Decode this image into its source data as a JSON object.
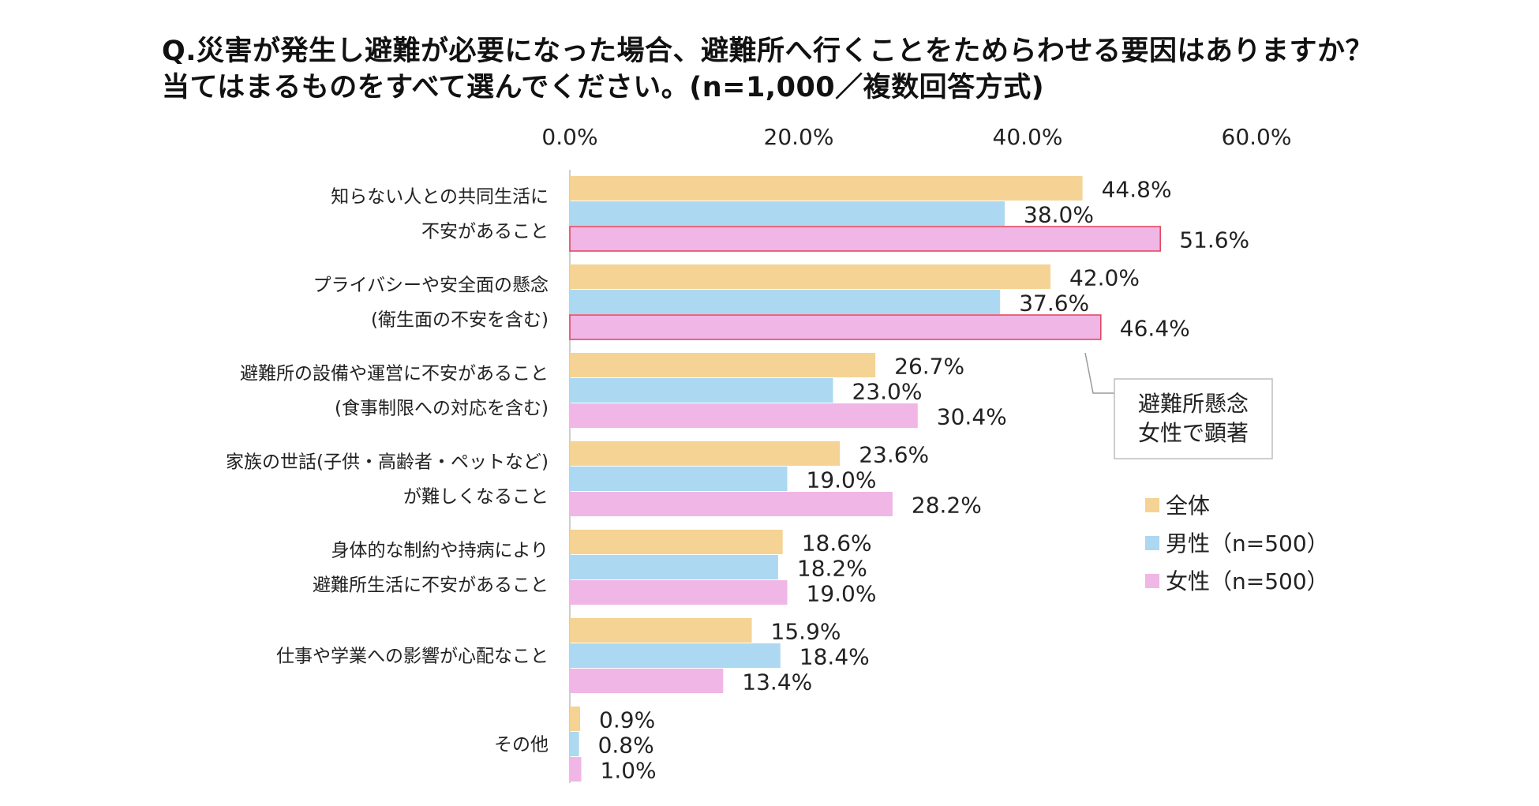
{
  "chart_data": {
    "type": "bar",
    "orientation": "horizontal",
    "title": "Q.災害が発生し避難が必要になった場合、避難所へ行くことをためらわせる要因はありますか？当てはまるものをすべて選んでください。(n=1,000／複数回答方式)",
    "xlim": [
      0,
      60
    ],
    "x_ticks": [
      "0.0%",
      "20.0%",
      "40.0%",
      "60.0%"
    ],
    "x_tick_values": [
      0,
      20,
      40,
      60
    ],
    "tick_position": "top",
    "categories": [
      [
        "知らない人との共同生活に",
        "不安があること"
      ],
      [
        "プライバシーや安全面の懸念",
        "(衛生面の不安を含む)"
      ],
      [
        "避難所の設備や運営に不安があること",
        "(食事制限への対応を含む)"
      ],
      [
        "家族の世話(子供・高齢者・ペットなど)",
        "が難しくなること"
      ],
      [
        "身体的な制約や持病により",
        "避難所生活に不安があること"
      ],
      [
        "仕事や学業への影響が心配なこと"
      ],
      [
        "その他"
      ]
    ],
    "series": [
      {
        "name": "全体",
        "color": "#f4d394",
        "values": [
          44.8,
          42.0,
          26.7,
          23.6,
          18.6,
          15.9,
          0.9
        ],
        "labels": [
          "44.8%",
          "42.0%",
          "26.7%",
          "23.6%",
          "18.6%",
          "15.9%",
          "0.9%"
        ]
      },
      {
        "name": "男性（n=500）",
        "color": "#acd8f2",
        "values": [
          38.0,
          37.6,
          23.0,
          19.0,
          18.2,
          18.4,
          0.8
        ],
        "labels": [
          "38.0%",
          "37.6%",
          "23.0%",
          "19.0%",
          "18.2%",
          "18.4%",
          "0.8%"
        ]
      },
      {
        "name": "女性（n=500）",
        "color": "#f0b6e6",
        "values": [
          51.6,
          46.4,
          30.4,
          28.2,
          19.0,
          13.4,
          1.0
        ],
        "labels": [
          "51.6%",
          "46.4%",
          "30.4%",
          "28.2%",
          "19.0%",
          "13.4%",
          "1.0%"
        ]
      }
    ],
    "highlight_border_color": "#e0405a",
    "highlight": {
      "series": 2,
      "categories": [
        0,
        1
      ]
    },
    "annotation": {
      "lines": [
        "避難所懸念",
        "女性で顕著"
      ]
    },
    "legend_position": "right",
    "grid": false
  }
}
